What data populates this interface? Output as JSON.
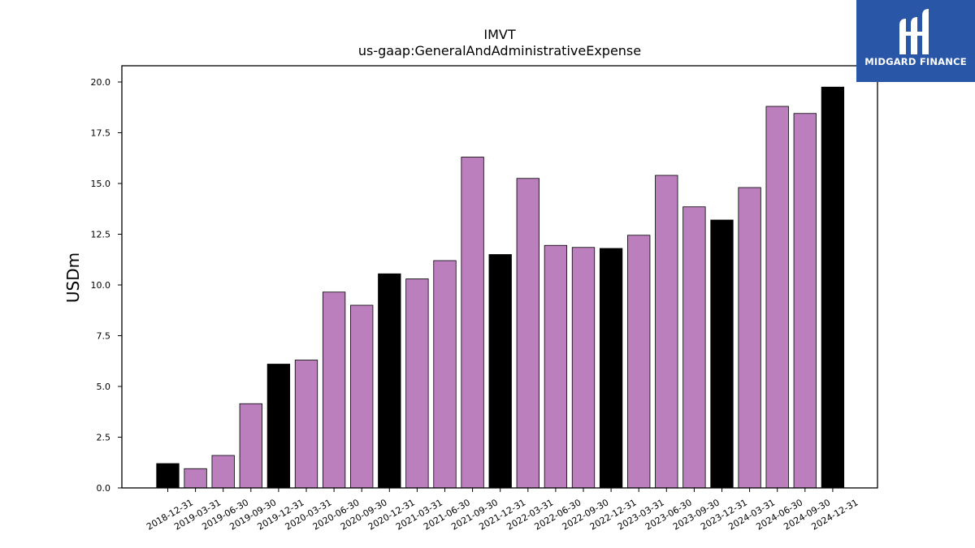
{
  "chart_data": {
    "type": "bar",
    "title": "IMVT",
    "subtitle": "us-gaap:GeneralAndAdministrativeExpense",
    "xlabel": "",
    "ylabel": "USDm",
    "ylim": [
      0,
      20.8
    ],
    "yticks": [
      "0.0",
      "2.5",
      "5.0",
      "7.5",
      "10.0",
      "12.5",
      "15.0",
      "17.5",
      "20.0"
    ],
    "grid": false,
    "categories": [
      "2018-12-31",
      "2019-03-31",
      "2019-06-30",
      "2019-09-30",
      "2019-12-31",
      "2020-03-31",
      "2020-06-30",
      "2020-09-30",
      "2020-12-31",
      "2021-03-31",
      "2021-06-30",
      "2021-09-30",
      "2021-12-31",
      "2022-03-31",
      "2022-06-30",
      "2022-09-30",
      "2022-12-31",
      "2023-03-31",
      "2023-06-30",
      "2023-09-30",
      "2023-12-31",
      "2024-03-31",
      "2024-06-30",
      "2024-09-30",
      "2024-12-31"
    ],
    "values": [
      1.2,
      0.95,
      1.6,
      4.15,
      6.1,
      6.3,
      9.65,
      9.0,
      10.55,
      10.3,
      11.2,
      16.3,
      11.5,
      15.25,
      11.95,
      11.85,
      11.8,
      12.45,
      15.4,
      13.85,
      13.2,
      14.8,
      18.8,
      18.45,
      19.75
    ],
    "colors": {
      "quarter": "#bb7fbd",
      "year_end": "#000000",
      "edge": "#000000"
    }
  },
  "logo": {
    "text": "MIDGARD FINANCE",
    "background": "#2a56a8"
  }
}
